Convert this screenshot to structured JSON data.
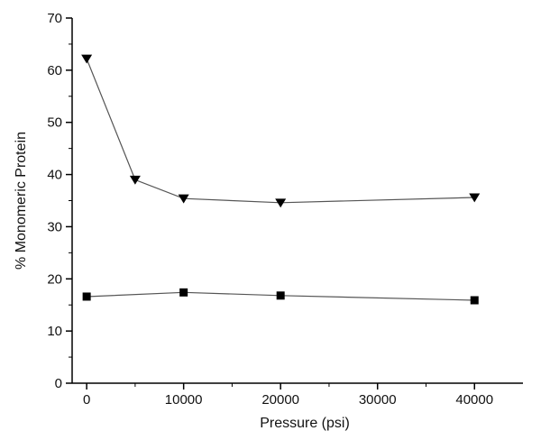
{
  "chart_data": {
    "type": "line",
    "xlabel": "Pressure (psi)",
    "ylabel": "% Monomeric Protein",
    "xlim": [
      -1500,
      45000
    ],
    "ylim": [
      0,
      70
    ],
    "x_ticks": [
      "0",
      "10000",
      "20000",
      "30000",
      "40000"
    ],
    "y_ticks": [
      "0",
      "10",
      "20",
      "30",
      "40",
      "50",
      "60",
      "70"
    ],
    "grid": false,
    "legend": "none",
    "series": [
      {
        "marker": "triangle-down",
        "color": "#000000",
        "line_color": "#555555",
        "x": [
          0,
          5000,
          10000,
          20000,
          40000
        ],
        "y": [
          62.2,
          39.0,
          35.4,
          34.6,
          35.6
        ]
      },
      {
        "marker": "square",
        "color": "#000000",
        "line_color": "#555555",
        "x": [
          0,
          10000,
          20000,
          40000
        ],
        "y": [
          16.6,
          17.4,
          16.8,
          15.9
        ]
      }
    ]
  }
}
